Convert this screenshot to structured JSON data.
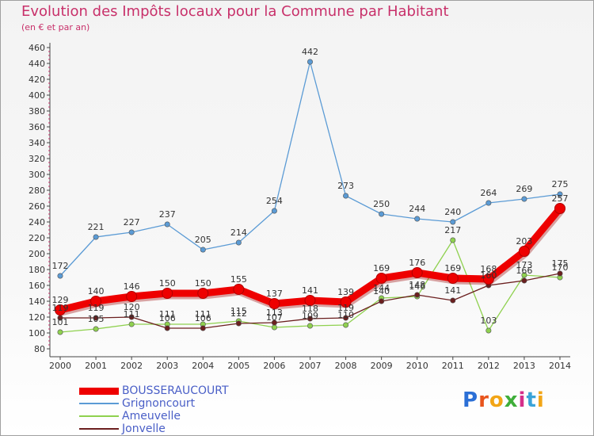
{
  "title": "Evolution des Impôts locaux pour la Commune par Habitant",
  "subtitle": "(en € et par an)",
  "brand": "Proxiti",
  "chart_data": {
    "type": "line",
    "title": "Evolution des Impôts locaux pour la Commune par Habitant",
    "subtitle": "(en € et par an)",
    "xlabel": "",
    "ylabel": "",
    "ylim": [
      80,
      460
    ],
    "y_ticks": [
      80,
      100,
      120,
      140,
      160,
      180,
      200,
      220,
      240,
      260,
      280,
      300,
      320,
      340,
      360,
      380,
      400,
      420,
      440,
      460
    ],
    "categories": [
      "2000",
      "2001",
      "2002",
      "2003",
      "2004",
      "2005",
      "2006",
      "2007",
      "2008",
      "2009",
      "2010",
      "2011",
      "2012",
      "2013",
      "2014"
    ],
    "legend_position": "bottom-left",
    "grid": false,
    "series": [
      {
        "name": "BOUSSERAUCOURT",
        "color": "#ee0000",
        "values": [
          129,
          140,
          146,
          150,
          150,
          155,
          137,
          141,
          139,
          169,
          176,
          169,
          168,
          203,
          257
        ]
      },
      {
        "name": "Grignoncourt",
        "color": "#5b9bd5",
        "values": [
          172,
          221,
          227,
          237,
          205,
          214,
          254,
          442,
          273,
          250,
          244,
          240,
          264,
          269,
          275
        ]
      },
      {
        "name": "Ameuvelle",
        "color": "#8fd14f",
        "values": [
          101,
          105,
          111,
          111,
          111,
          115,
          107,
          109,
          110,
          144,
          146,
          217,
          103,
          173,
          170
        ]
      },
      {
        "name": "Jonvelle",
        "color": "#6b1f1f",
        "values": [
          119,
          119,
          120,
          106,
          106,
          112,
          113,
          118,
          119,
          140,
          148,
          141,
          160,
          166,
          175
        ]
      }
    ]
  }
}
